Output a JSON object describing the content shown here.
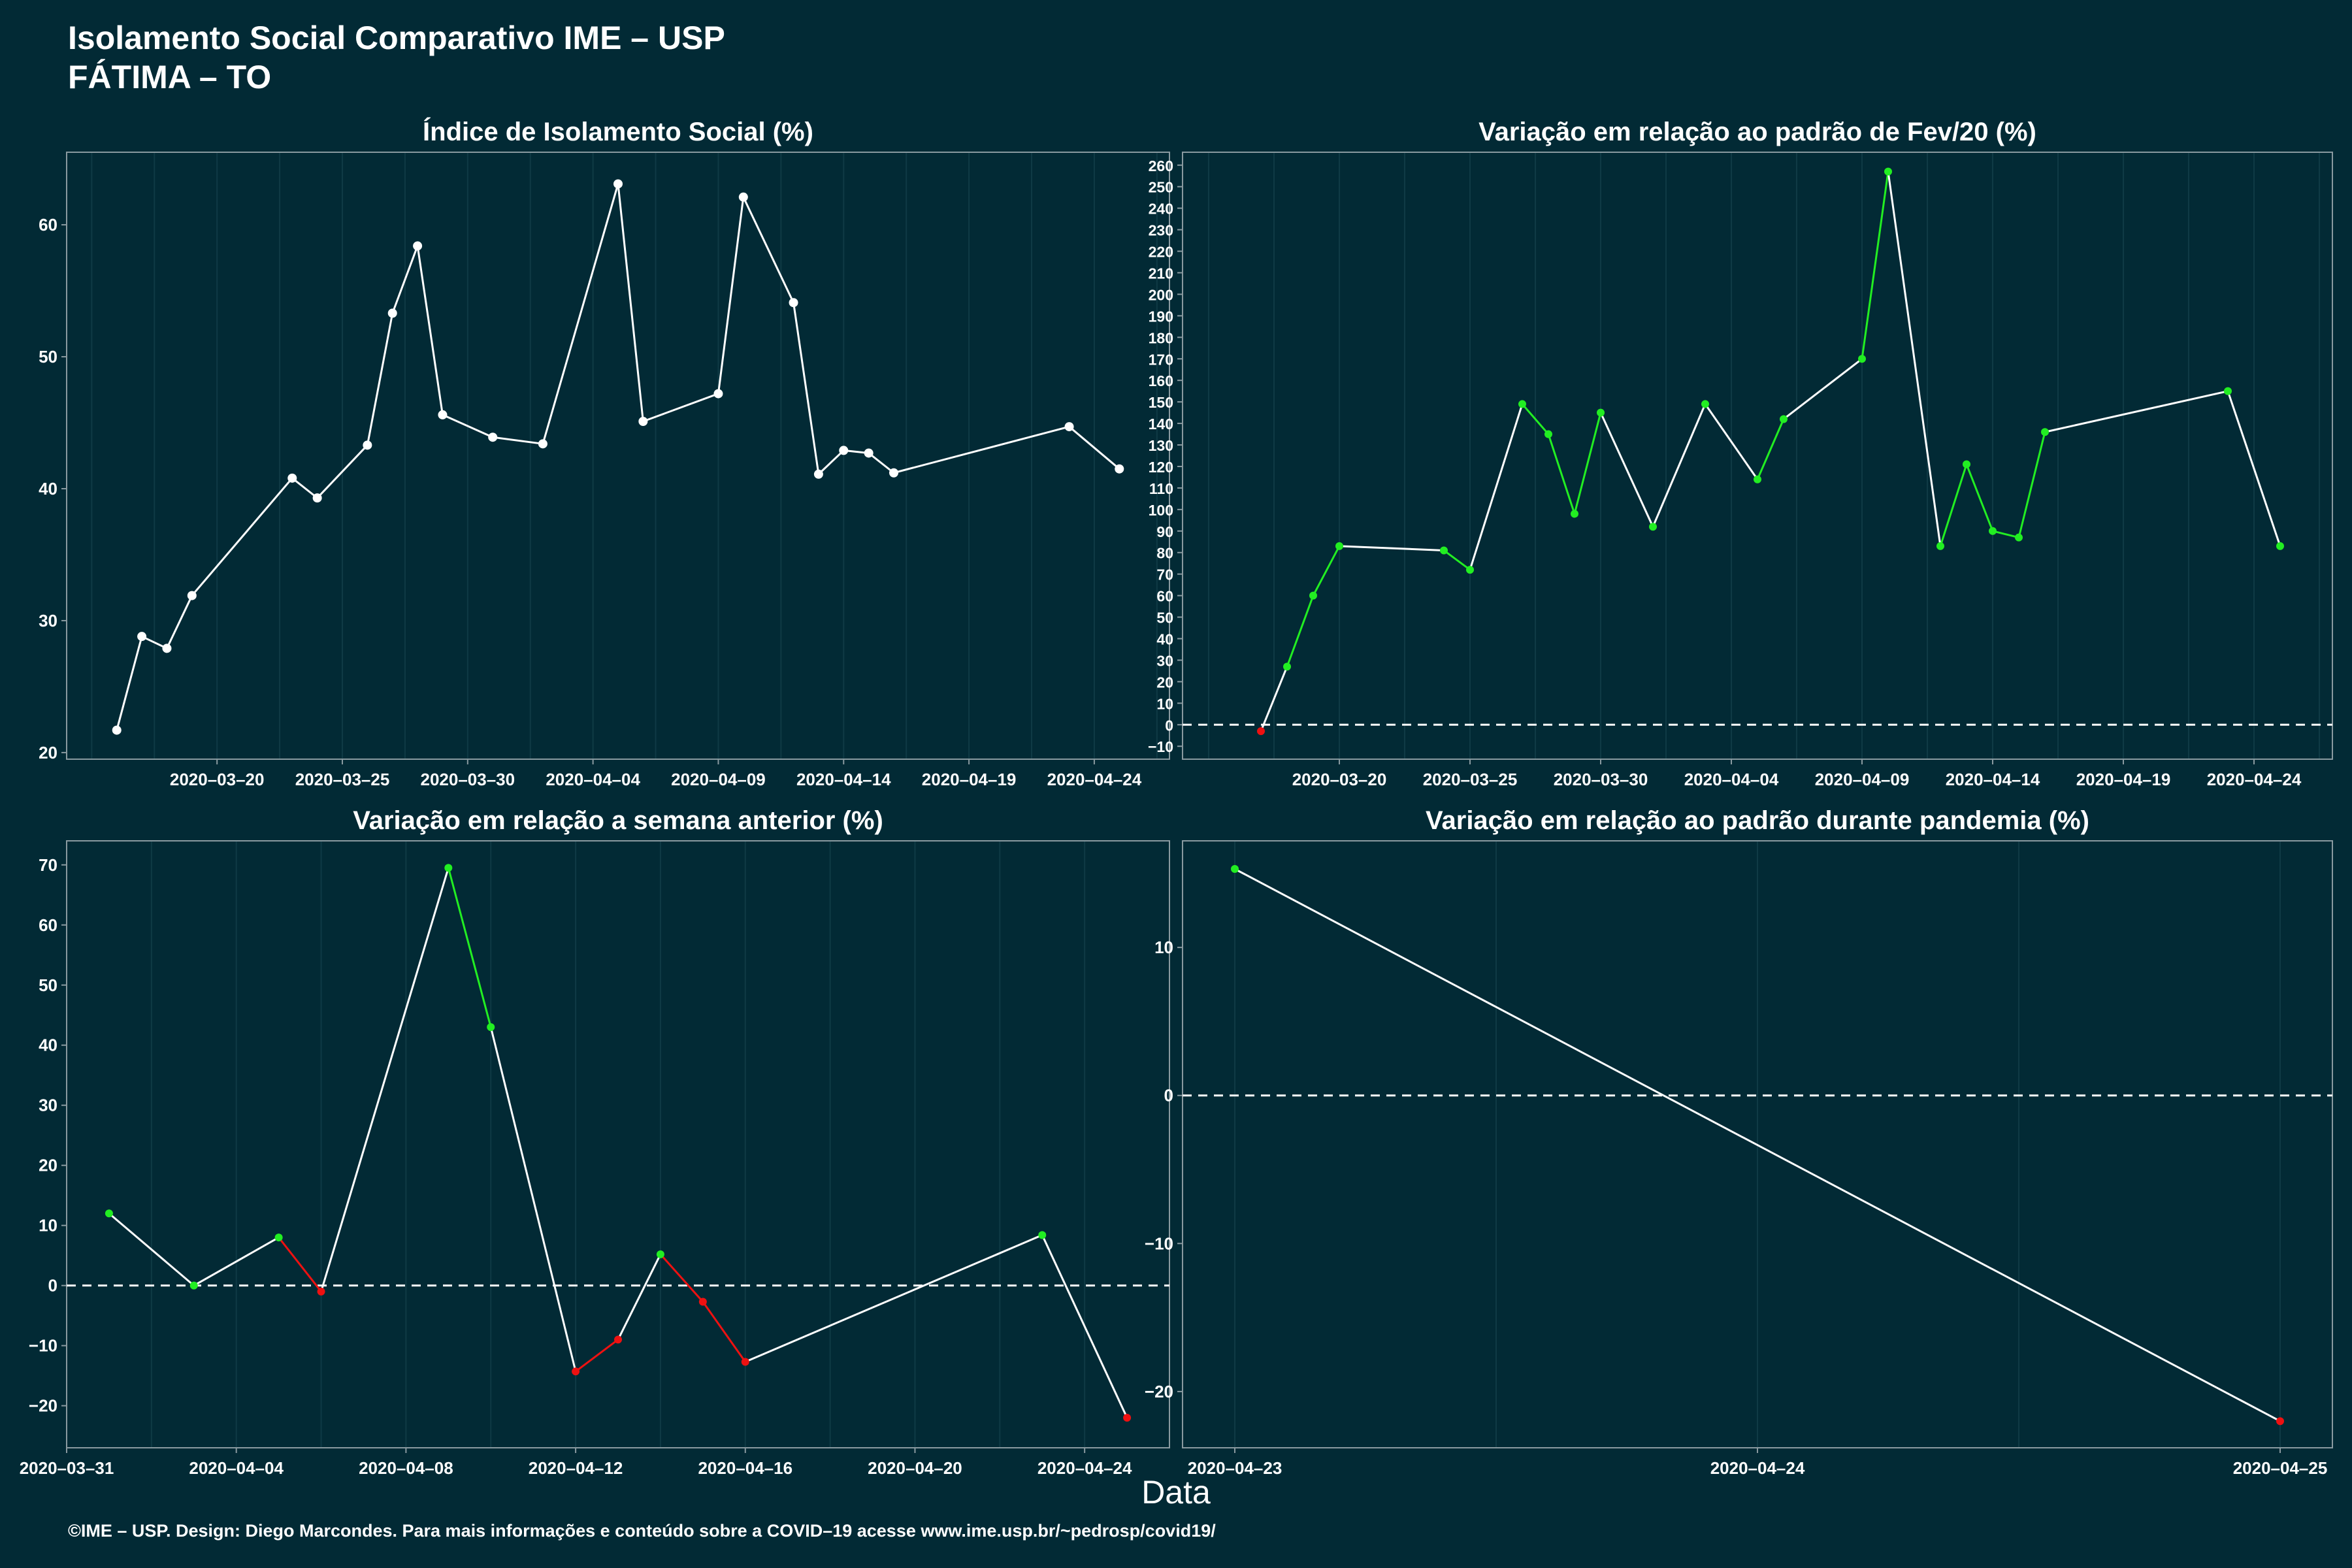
{
  "header": {
    "title_line1": "Isolamento Social Comparativo IME – USP",
    "title_line2": "FÁTIMA – TO"
  },
  "xlabel": "Data",
  "footer": "©IME – USP. Design: Diego Marcondes. Para mais informações e conteúdo sobre a COVID–19 acesse www.ime.usp.br/~pedrosp/covid19/",
  "colors": {
    "background": "#022a35",
    "line": "#ffffff",
    "increase": "#22ee22",
    "decrease": "#ee1111",
    "frame": "#8a9aa0"
  },
  "chart_data": [
    {
      "type": "line",
      "title": "Índice de Isolamento Social (%)",
      "xlabel": "",
      "ylabel": "",
      "x_type": "date",
      "xlim": [
        "2020-03-14",
        "2020-04-27"
      ],
      "ylim": [
        19.5,
        65.5
      ],
      "xticks": [
        "2020-03-20",
        "2020-03-25",
        "2020-03-30",
        "2020-04-04",
        "2020-04-09",
        "2020-04-14",
        "2020-04-19",
        "2020-04-24"
      ],
      "xtick_labels": [
        "2020–03–20",
        "2020–03–25",
        "2020–03–30",
        "2020–04–04",
        "2020–04–09",
        "2020–04–14",
        "2020–04–19",
        "2020–04–24"
      ],
      "yticks": [
        20,
        30,
        40,
        50,
        60
      ],
      "ytick_labels": [
        "20",
        "30",
        "40",
        "50",
        "60"
      ],
      "zero_line": false,
      "point_colors": false,
      "x": [
        "2020-03-16",
        "2020-03-17",
        "2020-03-18",
        "2020-03-19",
        "2020-03-23",
        "2020-03-24",
        "2020-03-26",
        "2020-03-27",
        "2020-03-28",
        "2020-03-29",
        "2020-03-31",
        "2020-04-02",
        "2020-04-05",
        "2020-04-06",
        "2020-04-09",
        "2020-04-10",
        "2020-04-12",
        "2020-04-13",
        "2020-04-14",
        "2020-04-15",
        "2020-04-16",
        "2020-04-23",
        "2020-04-25"
      ],
      "values": [
        21.7,
        28.8,
        27.9,
        31.9,
        40.8,
        39.3,
        43.3,
        53.3,
        58.4,
        45.6,
        43.9,
        43.4,
        63.1,
        45.1,
        47.2,
        62.1,
        54.1,
        41.1,
        42.9,
        42.7,
        41.2,
        44.7,
        41.5
      ]
    },
    {
      "type": "line",
      "title": "Variação em relação ao padrão de Fev/20 (%)",
      "xlabel": "",
      "ylabel": "",
      "x_type": "date",
      "xlim": [
        "2020-03-14",
        "2020-04-27"
      ],
      "ylim": [
        -16,
        266
      ],
      "xticks": [
        "2020-03-20",
        "2020-03-25",
        "2020-03-30",
        "2020-04-04",
        "2020-04-09",
        "2020-04-14",
        "2020-04-19",
        "2020-04-24"
      ],
      "xtick_labels": [
        "2020–03–20",
        "2020–03–25",
        "2020–03–30",
        "2020–04–04",
        "2020–04–09",
        "2020–04–14",
        "2020–04–19",
        "2020–04–24"
      ],
      "yticks": [
        -10,
        0,
        10,
        20,
        30,
        40,
        50,
        60,
        70,
        80,
        90,
        100,
        110,
        120,
        130,
        140,
        150,
        160,
        170,
        180,
        190,
        200,
        210,
        220,
        230,
        240,
        250,
        260
      ],
      "ytick_labels": [
        "−10",
        "0",
        "10",
        "20",
        "30",
        "40",
        "50",
        "60",
        "70",
        "80",
        "90",
        "100",
        "110",
        "120",
        "130",
        "140",
        "150",
        "160",
        "170",
        "180",
        "190",
        "200",
        "210",
        "220",
        "230",
        "240",
        "250",
        "260"
      ],
      "zero_line": true,
      "point_colors": true,
      "x": [
        "2020-03-17",
        "2020-03-18",
        "2020-03-19",
        "2020-03-20",
        "2020-03-24",
        "2020-03-25",
        "2020-03-27",
        "2020-03-28",
        "2020-03-29",
        "2020-03-30",
        "2020-04-01",
        "2020-04-03",
        "2020-04-05",
        "2020-04-06",
        "2020-04-09",
        "2020-04-10",
        "2020-04-12",
        "2020-04-13",
        "2020-04-14",
        "2020-04-15",
        "2020-04-16",
        "2020-04-23",
        "2020-04-25"
      ],
      "values": [
        -3,
        27,
        60,
        83,
        81,
        72,
        149,
        135,
        98,
        145,
        92,
        149,
        114,
        142,
        170,
        257,
        83,
        121,
        90,
        87,
        136,
        155,
        83
      ]
    },
    {
      "type": "line",
      "title": "Variação em relação a semana anterior (%)",
      "xlabel": "",
      "ylabel": "",
      "x_type": "date",
      "xlim": [
        "2020-03-31",
        "2020-04-26"
      ],
      "ylim": [
        -27,
        74
      ],
      "xticks": [
        "2020-03-31",
        "2020-04-04",
        "2020-04-08",
        "2020-04-12",
        "2020-04-16",
        "2020-04-20",
        "2020-04-24"
      ],
      "xtick_labels": [
        "2020–03–31",
        "2020–04–04",
        "2020–04–08",
        "2020–04–12",
        "2020–04–16",
        "2020–04–20",
        "2020–04–24"
      ],
      "yticks": [
        -20,
        -10,
        0,
        10,
        20,
        30,
        40,
        50,
        60,
        70
      ],
      "ytick_labels": [
        "−20",
        "−10",
        "0",
        "10",
        "20",
        "30",
        "40",
        "50",
        "60",
        "70"
      ],
      "zero_line": true,
      "point_colors": true,
      "x": [
        "2020-04-01",
        "2020-04-03",
        "2020-04-05",
        "2020-04-06",
        "2020-04-09",
        "2020-04-10",
        "2020-04-12",
        "2020-04-13",
        "2020-04-14",
        "2020-04-15",
        "2020-04-16",
        "2020-04-23",
        "2020-04-25"
      ],
      "values": [
        12,
        0,
        8,
        -1,
        69.5,
        43,
        -14.3,
        -9,
        5.2,
        -2.7,
        -12.7,
        8.4,
        -22
      ]
    },
    {
      "type": "line",
      "title": "Variação em relação ao padrão durante pandemia (%)",
      "xlabel": "",
      "ylabel": "",
      "x_type": "date",
      "xlim": [
        "2020-04-22.9",
        "2020-04-25.1"
      ],
      "ylim": [
        -23.8,
        17.2
      ],
      "xticks": [
        "2020-04-23",
        "2020-04-24",
        "2020-04-25"
      ],
      "xtick_labels": [
        "2020–04–23",
        "2020–04–24",
        "2020–04–25"
      ],
      "yticks": [
        -20,
        -10,
        0,
        10
      ],
      "ytick_labels": [
        "−20",
        "−10",
        "0",
        "10"
      ],
      "zero_line": true,
      "point_colors": true,
      "x": [
        "2020-04-23",
        "2020-04-25"
      ],
      "values": [
        15.3,
        -22
      ]
    }
  ]
}
